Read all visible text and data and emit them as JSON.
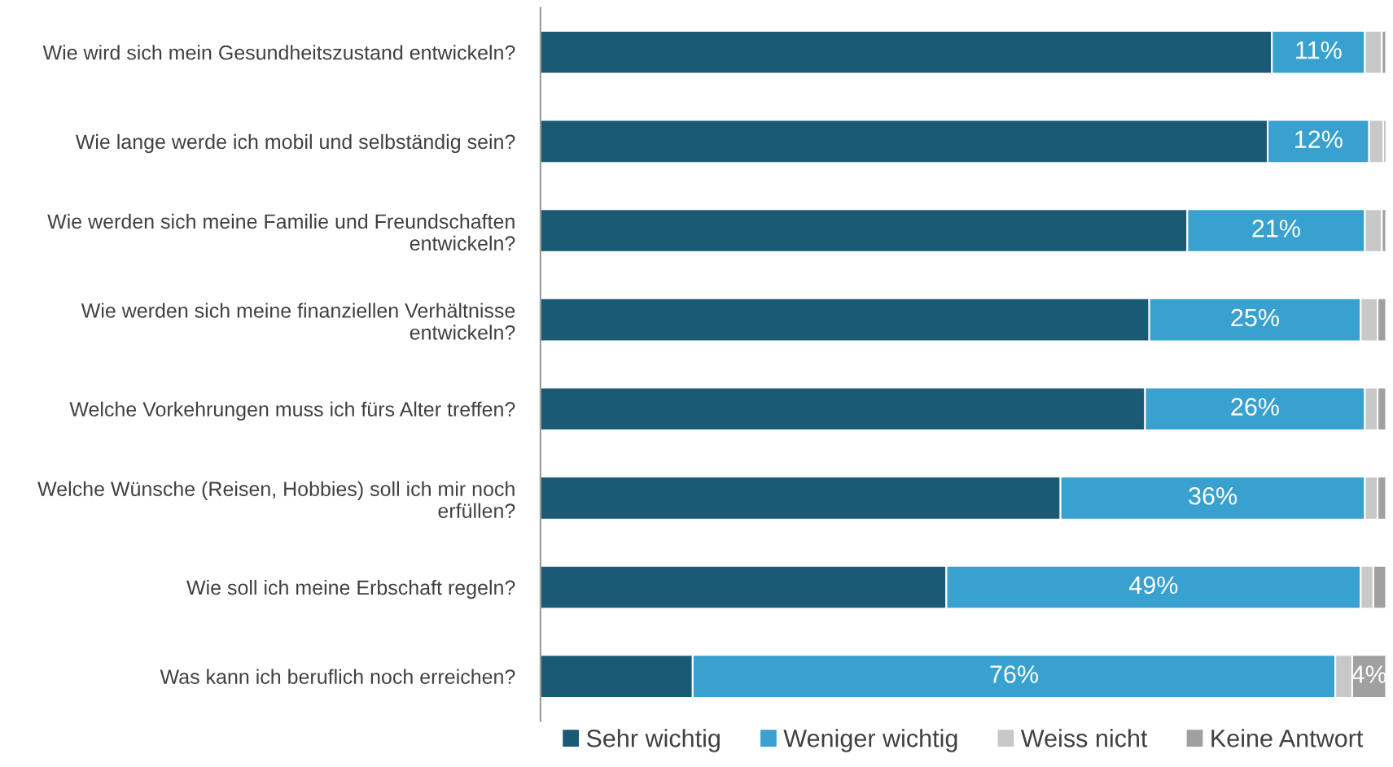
{
  "chart_data": {
    "type": "bar",
    "orientation": "horizontal",
    "stacked": true,
    "categories": [
      "Wie wird sich mein Gesundheitszustand entwickeln?",
      "Wie lange werde ich mobil und selbständig sein?",
      "Wie werden sich meine Familie und Freundschaften\nentwickeln?",
      "Wie werden sich meine finanziellen Verhältnisse\nentwickeln?",
      "Welche Vorkehrungen muss ich fürs Alter treffen?",
      "Welche Wünsche (Reisen, Hobbies) soll ich mir noch\nerfüllen?",
      "Wie soll ich meine Erbschaft regeln?",
      "Was kann ich beruflich noch erreichen?"
    ],
    "xlim": [
      0,
      100
    ],
    "tick_labels": "y",
    "legend": "bottom",
    "series": [
      {
        "name": "Sehr wichtig",
        "color": "#1b5a75",
        "values": [
          86.5,
          86,
          76.5,
          72,
          71.5,
          61.5,
          48,
          18
        ]
      },
      {
        "name": "Weniger wichtig",
        "color": "#38a1cf",
        "values": [
          11,
          12,
          21,
          25,
          26,
          36,
          49,
          76
        ],
        "value_labels": [
          "11%",
          "12%",
          "21%",
          "25%",
          "26%",
          "36%",
          "49%",
          "76%"
        ]
      },
      {
        "name": "Weiss nicht",
        "color": "#c8c8c8",
        "values": [
          2,
          1.7,
          2,
          2,
          1.5,
          1.5,
          1.5,
          2
        ]
      },
      {
        "name": "Keine Antwort",
        "color": "#a0a0a0",
        "values": [
          0.5,
          0.3,
          0.5,
          1,
          1,
          1,
          1.5,
          4
        ],
        "value_labels": [
          null,
          null,
          null,
          null,
          null,
          null,
          null,
          "4%"
        ]
      }
    ]
  }
}
